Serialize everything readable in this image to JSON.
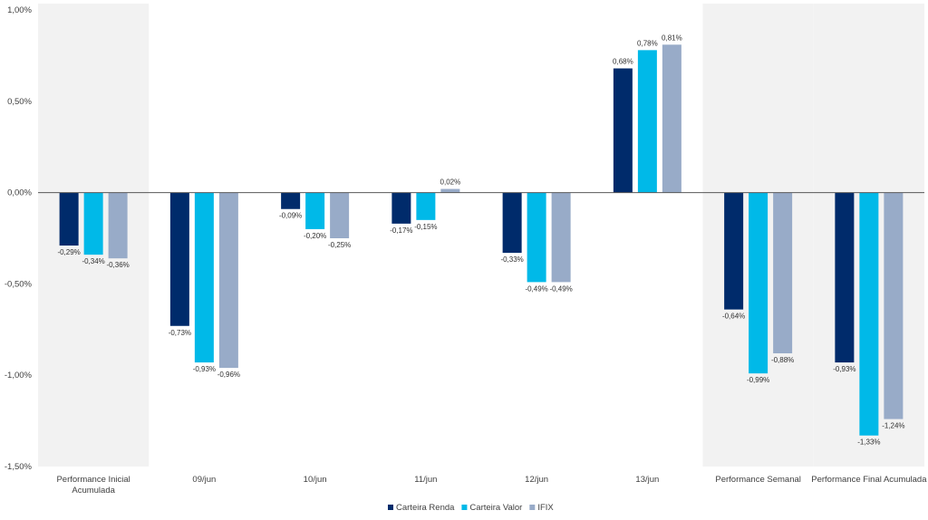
{
  "chart_data": {
    "type": "bar",
    "title": "",
    "xlabel": "",
    "ylabel": "",
    "ylim": [
      -1.5,
      1.0
    ],
    "yticks": [
      1.0,
      0.5,
      0.0,
      -0.5,
      -1.0,
      -1.5
    ],
    "ytick_labels": [
      "1,00%",
      "0,50%",
      "0,00%",
      "-0,50%",
      "-1,00%",
      "-1,50%"
    ],
    "categories": [
      [
        "Performance Inicial",
        "Acumulada"
      ],
      [
        "09/jun"
      ],
      [
        "10/jun"
      ],
      [
        "11/jun"
      ],
      [
        "12/jun"
      ],
      [
        "13/jun"
      ],
      [
        "Performance Semanal"
      ],
      [
        "Performance Final Acumulada"
      ]
    ],
    "shaded_categories": [
      0,
      6,
      7
    ],
    "shade_color": "#f2f2f2",
    "series": [
      {
        "name": "Carteira Renda",
        "color": "#002b6b",
        "values": [
          -0.29,
          -0.73,
          -0.09,
          -0.17,
          -0.33,
          0.68,
          -0.64,
          -0.93
        ],
        "labels": [
          "-0,29%",
          "-0,73%",
          "-0,09%",
          "-0,17%",
          "-0,33%",
          "0,68%",
          "-0,64%",
          "-0,93%"
        ]
      },
      {
        "name": "Carteira Valor",
        "color": "#00b9e8",
        "values": [
          -0.34,
          -0.93,
          -0.2,
          -0.15,
          -0.49,
          0.78,
          -0.99,
          -1.33
        ],
        "labels": [
          "-0,34%",
          "-0,93%",
          "-0,20%",
          "-0,15%",
          "-0,49%",
          "0,78%",
          "-0,99%",
          "-1,33%"
        ]
      },
      {
        "name": "IFIX",
        "color": "#98abc8",
        "values": [
          -0.36,
          -0.96,
          -0.25,
          0.02,
          -0.49,
          0.81,
          -0.88,
          -1.24
        ],
        "labels": [
          "-0,36%",
          "-0,96%",
          "-0,25%",
          "0,02%",
          "-0,49%",
          "0,81%",
          "-0,88%",
          "-1,24%"
        ]
      }
    ],
    "legend_position": "bottom",
    "grid": false
  }
}
